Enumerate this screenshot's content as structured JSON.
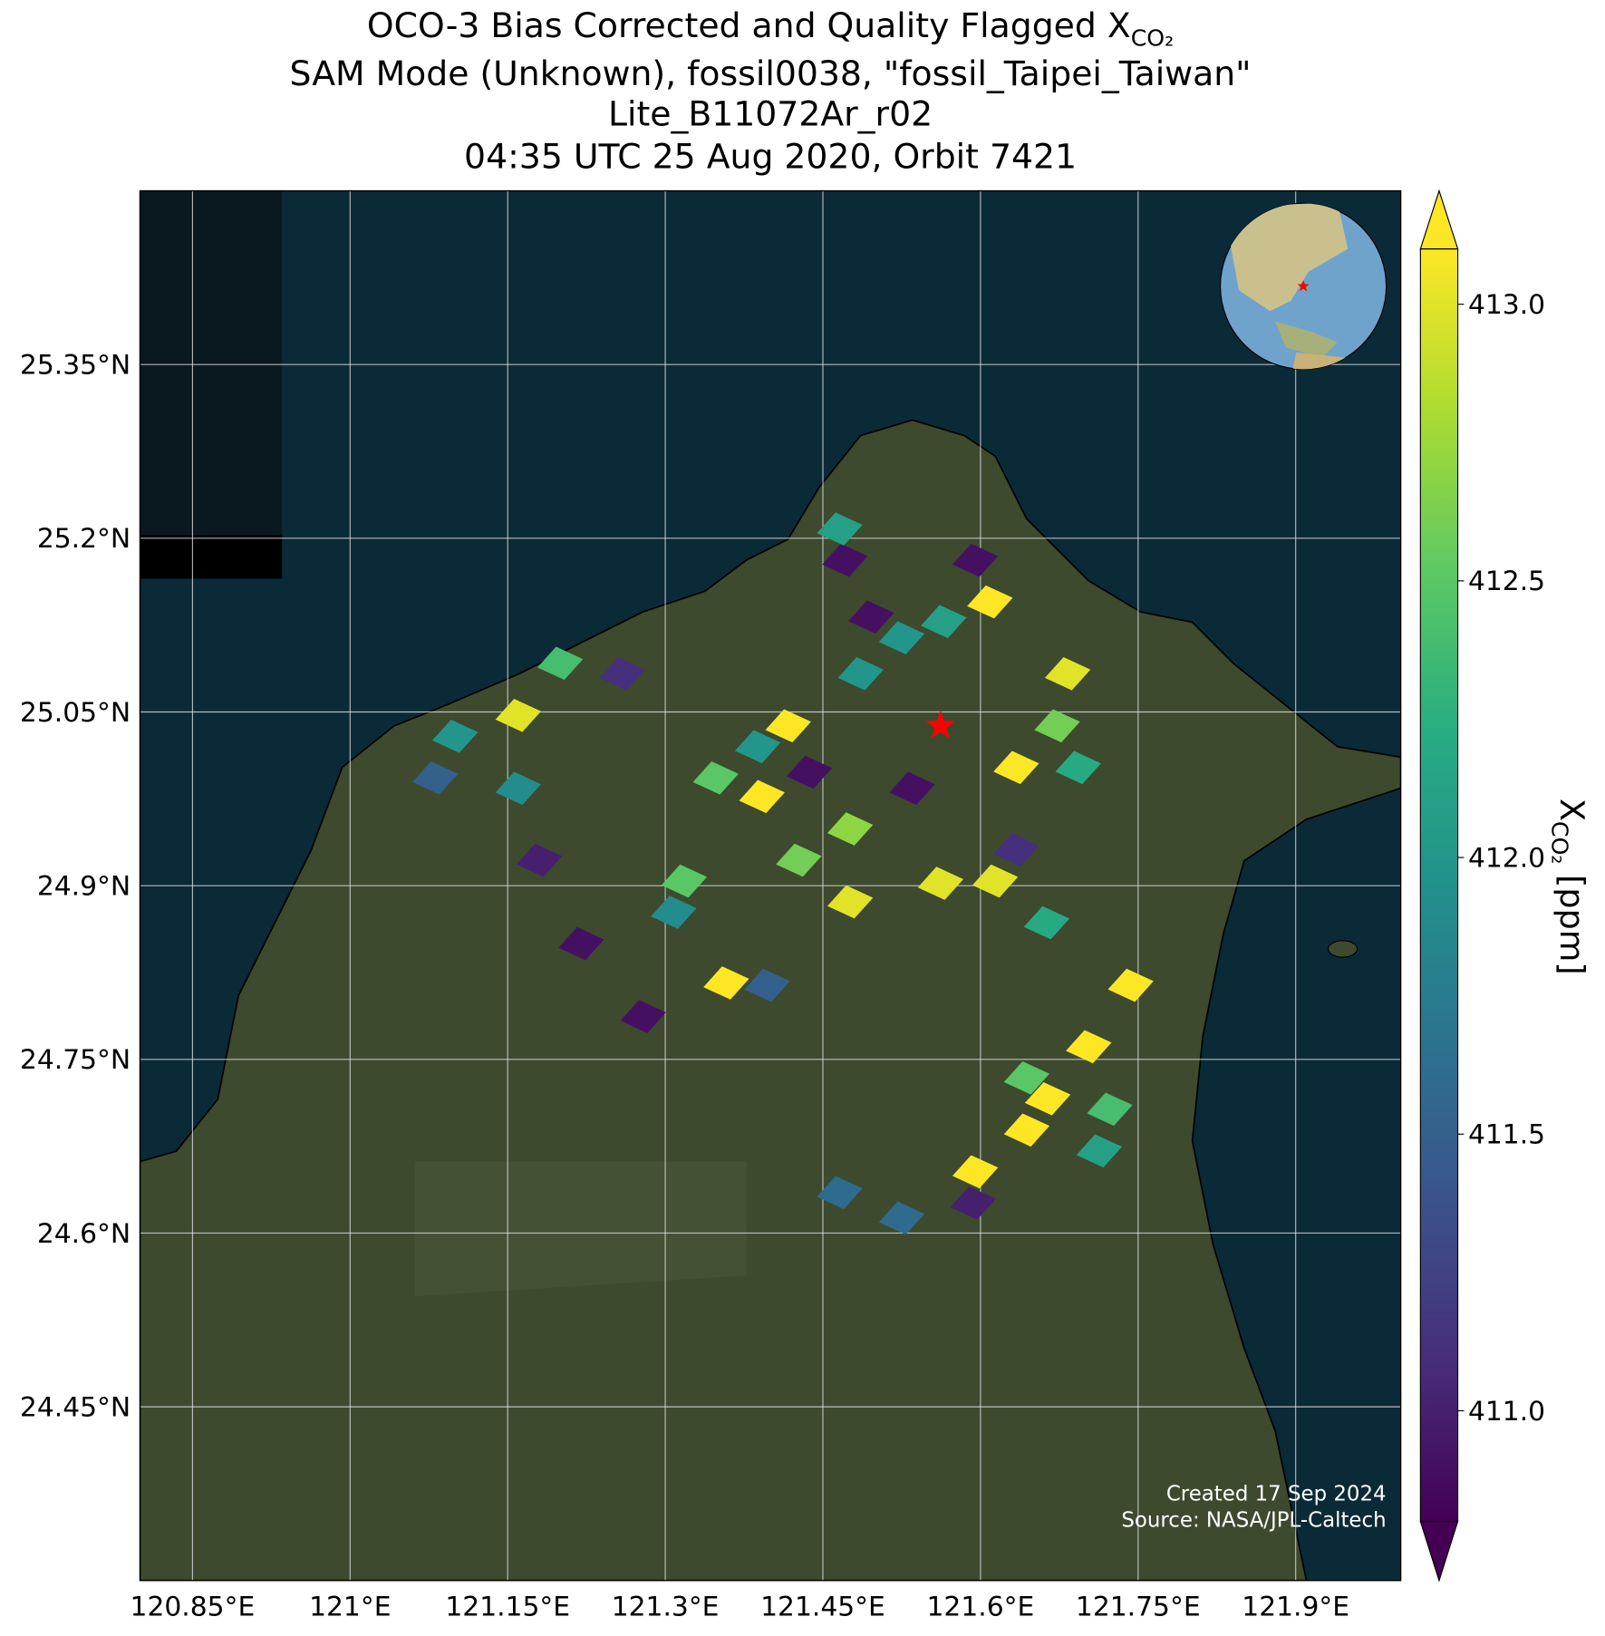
{
  "chart_data": {
    "type": "map",
    "title_lines": [
      "OCO-3 Bias Corrected and Quality Flagged X",
      "SAM Mode (Unknown), fossil0038, \"fossil_Taipei_Taiwan\"",
      "Lite_B11072Ar_r02",
      "04:35 UTC 25 Aug 2020, Orbit 7421"
    ],
    "title_sub": "CO₂",
    "xlim": [
      120.8,
      122.0
    ],
    "ylim": [
      24.3,
      25.5
    ],
    "xticks": [
      {
        "value": 120.85,
        "label": "120.85°E"
      },
      {
        "value": 121,
        "label": "121°E"
      },
      {
        "value": 121.15,
        "label": "121.15°E"
      },
      {
        "value": 121.3,
        "label": "121.3°E"
      },
      {
        "value": 121.45,
        "label": "121.45°E"
      },
      {
        "value": 121.6,
        "label": "121.6°E"
      },
      {
        "value": 121.75,
        "label": "121.75°E"
      },
      {
        "value": 121.9,
        "label": "121.9°E"
      }
    ],
    "yticks": [
      {
        "value": 24.45,
        "label": "24.45°N"
      },
      {
        "value": 24.6,
        "label": "24.6°N"
      },
      {
        "value": 24.75,
        "label": "24.75°N"
      },
      {
        "value": 24.9,
        "label": "24.9°N"
      },
      {
        "value": 25.05,
        "label": "25.05°N"
      },
      {
        "value": 25.2,
        "label": "25.2°N"
      },
      {
        "value": 25.35,
        "label": "25.35°N"
      }
    ],
    "grid": true,
    "clim": [
      410.8,
      413.1
    ],
    "cticks": [
      {
        "value": 411,
        "label": "411.0"
      },
      {
        "value": 411.5,
        "label": "411.5"
      },
      {
        "value": 412,
        "label": "412.0"
      },
      {
        "value": 412.5,
        "label": "412.5"
      },
      {
        "value": 413,
        "label": "413.0"
      }
    ],
    "colorbar_label": "X",
    "colorbar_label_sub": "CO₂",
    "colorbar_label_unit": "[ppm]",
    "site": {
      "x": 121.562,
      "y": 25.038
    },
    "x": [
      121.417,
      121.392,
      121.358,
      121.562,
      121.743,
      121.609,
      121.683,
      121.634,
      121.703,
      121.595,
      121.644,
      121.664,
      121.279,
      121.22,
      121.18,
      121.535,
      121.437,
      121.259,
      121.471,
      121.496,
      121.595,
      121.466,
      121.525,
      121.081,
      121.16,
      121.348,
      121.388,
      121.486,
      121.565,
      121.673,
      121.693,
      121.614,
      121.663,
      121.634,
      121.466,
      121.525,
      121.713,
      121.723,
      121.593,
      121.476,
      121.427,
      121.318,
      121.1,
      121.16,
      121.2,
      121.308,
      121.476,
      121.397,
      121.644
    ],
    "y": [
      25.038,
      24.977,
      24.816,
      24.902,
      24.814,
      25.145,
      25.083,
      25.002,
      24.761,
      24.653,
      24.689,
      24.716,
      24.787,
      24.85,
      24.922,
      24.984,
      24.998,
      25.083,
      25.181,
      25.132,
      25.181,
      25.208,
      25.114,
      24.993,
      24.984,
      24.993,
      25.02,
      25.083,
      25.128,
      25.038,
      25.002,
      24.904,
      24.868,
      24.931,
      24.635,
      24.613,
      24.671,
      24.707,
      24.626,
      24.949,
      24.922,
      24.904,
      25.029,
      25.047,
      25.092,
      24.877,
      24.886,
      24.814,
      24.734
    ],
    "values": [
      413.1,
      413.1,
      413.1,
      413.0,
      413.1,
      413.1,
      413.0,
      413.1,
      413.1,
      413.1,
      413.1,
      413.1,
      410.9,
      410.9,
      411.0,
      410.9,
      410.9,
      411.1,
      410.9,
      410.9,
      410.9,
      412.1,
      412.0,
      411.5,
      411.9,
      412.5,
      412.0,
      412.0,
      412.1,
      412.6,
      412.2,
      413.0,
      412.2,
      411.1,
      411.6,
      411.6,
      412.1,
      412.4,
      411.0,
      412.7,
      412.6,
      412.5,
      412.0,
      413.0,
      412.4,
      411.9,
      413.0,
      411.5,
      412.5
    ],
    "footnote": [
      "Created 17 Sep 2024",
      "Source: NASA/JPL-Caltech"
    ]
  }
}
